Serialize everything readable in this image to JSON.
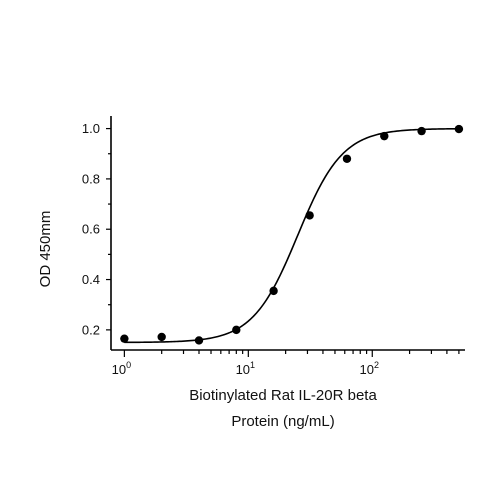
{
  "chart_data": {
    "type": "scatter",
    "xlabel_lines": [
      "Biotinylated Rat IL-20R beta",
      "Protein (ng/mL)"
    ],
    "ylabel": "OD 450mm",
    "x_scale": "log",
    "xlim": [
      0.78,
      560
    ],
    "ylim": [
      0.12,
      1.05
    ],
    "x_ticks": [
      {
        "value": 1,
        "base": "10",
        "exp": "0"
      },
      {
        "value": 10,
        "base": "10",
        "exp": "1"
      },
      {
        "value": 100,
        "base": "10",
        "exp": "2"
      }
    ],
    "y_ticks": [
      {
        "value": 0.2,
        "label": "0.2"
      },
      {
        "value": 0.4,
        "label": "0.4"
      },
      {
        "value": 0.6,
        "label": "0.6"
      },
      {
        "value": 0.8,
        "label": "0.8"
      },
      {
        "value": 1.0,
        "label": "1.0"
      }
    ],
    "grid": false,
    "legend": "none",
    "series": [
      {
        "marker": "filled-circle",
        "color": "#000000",
        "points": [
          {
            "x": 1,
            "y": 0.165
          },
          {
            "x": 2,
            "y": 0.172
          },
          {
            "x": 4,
            "y": 0.158
          },
          {
            "x": 8,
            "y": 0.2
          },
          {
            "x": 16,
            "y": 0.355
          },
          {
            "x": 31.25,
            "y": 0.655
          },
          {
            "x": 62.5,
            "y": 0.88
          },
          {
            "x": 125,
            "y": 0.97
          },
          {
            "x": 250,
            "y": 0.99
          },
          {
            "x": 500,
            "y": 0.998
          }
        ]
      }
    ],
    "fit": {
      "model": "4PL",
      "bottom": 0.15,
      "top": 1.0,
      "ec50": 25,
      "hill": 2.4
    }
  }
}
